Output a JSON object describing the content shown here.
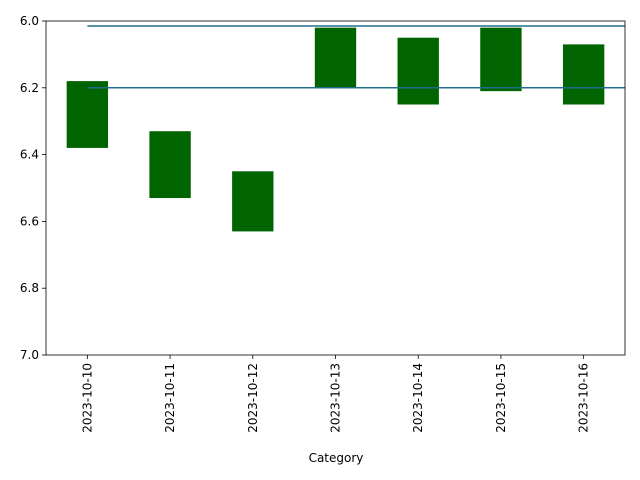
{
  "chart_data": {
    "type": "floating-bar",
    "x_label": "Category",
    "categories": [
      "2023-10-10",
      "2023-10-11",
      "2023-10-12",
      "2023-10-13",
      "2023-10-14",
      "2023-10-15",
      "2023-10-16"
    ],
    "low": [
      6.18,
      6.33,
      6.45,
      6.02,
      6.05,
      6.02,
      6.07
    ],
    "high": [
      6.38,
      6.53,
      6.63,
      6.2,
      6.25,
      6.21,
      6.25
    ],
    "color": "#006400",
    "hlines": [
      6.015,
      6.2
    ],
    "hline_color": "#1f6f8b",
    "ylim": [
      6.0,
      7.0
    ],
    "y_inverted": true,
    "yticks": [
      {
        "value": 6.0,
        "label": "6.0"
      },
      6.2,
      6.4,
      6.6,
      6.8,
      {
        "value": 7.0,
        "label": "7.0"
      }
    ]
  }
}
